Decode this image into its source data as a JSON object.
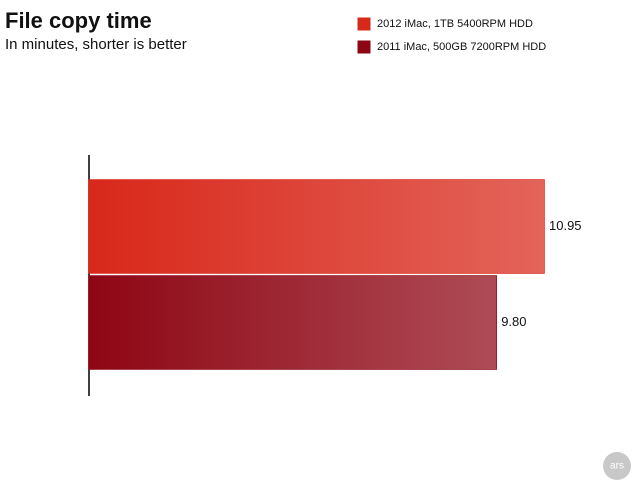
{
  "chart_data": {
    "type": "bar",
    "orientation": "horizontal",
    "title": "File copy time",
    "subtitle": "In minutes, shorter is better",
    "categories": [
      null
    ],
    "series": [
      {
        "name": "2012 iMac, 1TB 5400RPM HDD",
        "color": "#d8281a",
        "values": [
          10.95
        ],
        "value_labels": [
          "10.95"
        ]
      },
      {
        "name": "2011 iMac, 500GB 7200RPM HDD",
        "color": "#8e0614",
        "values": [
          9.8
        ],
        "value_labels": [
          "9.80"
        ]
      }
    ],
    "legend": "top-right",
    "watermark": "ars"
  }
}
